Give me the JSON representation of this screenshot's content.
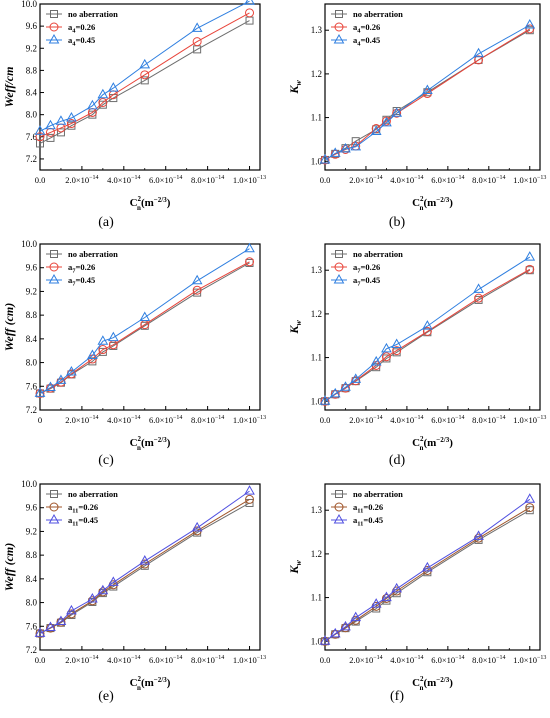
{
  "colors": {
    "no_aberration": "#6d6d6d",
    "a026": "#e8443a",
    "a045": "#2f7fe0",
    "axis": "#000000",
    "a026_row3": "#a0552a",
    "a045_row3": "#5050e0"
  },
  "chart_data": [
    {
      "type": "line",
      "panel": "(a)",
      "ylabel": "Weff/cm",
      "xlabel": "C_n^2(m^-2/3)",
      "xlim": [
        0,
        1.05e-13
      ],
      "ylim": [
        7.0,
        10.0
      ],
      "x_ticks": [
        0,
        2e-14,
        4e-14,
        6e-14,
        8e-14,
        1e-13
      ],
      "x_tick_labels": [
        "0.0",
        "2.0×10",
        "4.0×10",
        "6.0×10",
        "8.0×10",
        "1.0×10"
      ],
      "x_tick_exps": [
        "",
        "−14",
        "−14",
        "−14",
        "−14",
        "−13"
      ],
      "y_ticks": [
        7.2,
        7.6,
        8.0,
        8.4,
        8.8,
        9.2,
        9.6,
        10.0
      ],
      "y_tick_labels": [
        "7.2",
        "7.6",
        "8.0",
        "8.4",
        "8.8",
        "9.2",
        "9.6",
        "10.0"
      ],
      "legend": [
        {
          "base": "no aberration",
          "sub": ""
        },
        {
          "base": "a",
          "sub": "4",
          "suffix": "=0.26"
        },
        {
          "base": "a",
          "sub": "4",
          "suffix": "=0.45"
        }
      ],
      "x": [
        0,
        5e-15,
        1e-14,
        1.5e-14,
        2.5e-14,
        3e-14,
        3.5e-14,
        5e-14,
        7.5e-14,
        1e-13
      ],
      "series": [
        {
          "values": [
            7.48,
            7.58,
            7.68,
            7.8,
            8.0,
            8.18,
            8.3,
            8.62,
            9.18,
            9.7
          ],
          "marker": "square"
        },
        {
          "values": [
            7.6,
            7.68,
            7.76,
            7.84,
            8.04,
            8.22,
            8.36,
            8.72,
            9.32,
            9.84
          ],
          "marker": "circle"
        },
        {
          "values": [
            7.7,
            7.8,
            7.88,
            7.94,
            8.16,
            8.36,
            8.48,
            8.9,
            9.56,
            10.05
          ],
          "marker": "triangle"
        }
      ]
    },
    {
      "type": "line",
      "panel": "(b)",
      "ylabel": "K",
      "ylabel_sub": "w",
      "xlabel": "C_n^2(m^-2/3)",
      "xlim": [
        0,
        1.05e-13
      ],
      "ylim": [
        0.98,
        1.36
      ],
      "x_ticks": [
        0,
        2e-14,
        4e-14,
        6e-14,
        8e-14,
        1e-13
      ],
      "x_tick_labels": [
        "0.0",
        "2.0×10",
        "4.0×10",
        "6.0×10",
        "8.0×10",
        "1.0×10"
      ],
      "x_tick_exps": [
        "",
        "−14",
        "−14",
        "−14",
        "−14",
        "−13"
      ],
      "y_ticks": [
        1.0,
        1.1,
        1.2,
        1.3
      ],
      "y_tick_labels": [
        "1.0",
        "1.1",
        "1.2",
        "1.3"
      ],
      "legend": [
        {
          "base": "no aberration",
          "sub": ""
        },
        {
          "base": "a",
          "sub": "4",
          "suffix": "=0.26"
        },
        {
          "base": "a",
          "sub": "4",
          "suffix": "=0.45"
        }
      ],
      "x": [
        0,
        5e-15,
        1e-14,
        1.5e-14,
        2.5e-14,
        3e-14,
        3.5e-14,
        5e-14,
        7.5e-14,
        1e-13
      ],
      "series": [
        {
          "values": [
            1.003,
            1.017,
            1.03,
            1.046,
            1.073,
            1.095,
            1.115,
            1.158,
            1.232,
            1.3
          ],
          "marker": "square"
        },
        {
          "values": [
            1.003,
            1.016,
            1.027,
            1.035,
            1.075,
            1.092,
            1.11,
            1.155,
            1.232,
            1.303
          ],
          "marker": "circle"
        },
        {
          "values": [
            1.003,
            1.018,
            1.028,
            1.033,
            1.068,
            1.088,
            1.11,
            1.162,
            1.246,
            1.312
          ],
          "marker": "triangle"
        }
      ]
    },
    {
      "type": "line",
      "panel": "(c)",
      "ylabel": "Weff (cm)",
      "xlabel": "C_n^2(m^-2/3)",
      "xlim": [
        0,
        1.05e-13
      ],
      "ylim": [
        7.2,
        10.0
      ],
      "x_ticks": [
        0,
        2e-14,
        4e-14,
        6e-14,
        8e-14,
        1e-13
      ],
      "x_tick_labels": [
        "0",
        "2.0×10",
        "4.0×10",
        "6.0×10",
        "8.0×10",
        "1.0×10"
      ],
      "x_tick_exps": [
        "",
        "−14",
        "−14",
        "−14",
        "−14",
        "−13"
      ],
      "y_ticks": [
        7.2,
        7.6,
        8.0,
        8.4,
        8.8,
        9.2,
        9.6,
        10.0
      ],
      "y_tick_labels": [
        "7.2",
        "7.6",
        "8.0",
        "8.4",
        "8.8",
        "9.2",
        "9.6",
        "10.0"
      ],
      "legend": [
        {
          "base": "no aberration",
          "sub": ""
        },
        {
          "base": "a",
          "sub": "7",
          "suffix": "=0.26"
        },
        {
          "base": "a",
          "sub": "7",
          "suffix": "=0.45"
        }
      ],
      "x": [
        0,
        5e-15,
        1e-14,
        1.5e-14,
        2.5e-14,
        3e-14,
        3.5e-14,
        5e-14,
        7.5e-14,
        1e-13
      ],
      "series": [
        {
          "values": [
            7.48,
            7.56,
            7.66,
            7.8,
            8.02,
            8.18,
            8.28,
            8.62,
            9.18,
            9.68
          ],
          "marker": "square"
        },
        {
          "values": [
            7.48,
            7.57,
            7.67,
            7.81,
            8.06,
            8.22,
            8.3,
            8.64,
            9.22,
            9.7
          ],
          "marker": "circle"
        },
        {
          "values": [
            7.48,
            7.58,
            7.7,
            7.84,
            8.12,
            8.36,
            8.42,
            8.76,
            9.38,
            9.92
          ],
          "marker": "triangle"
        }
      ]
    },
    {
      "type": "line",
      "panel": "(d)",
      "ylabel": "K",
      "ylabel_sub": "w",
      "xlabel": "C_n^2(m^-2/3)",
      "xlim": [
        0,
        1.05e-13
      ],
      "ylim": [
        0.98,
        1.36
      ],
      "x_ticks": [
        0,
        2e-14,
        4e-14,
        6e-14,
        8e-14,
        1e-13
      ],
      "x_tick_labels": [
        "0.0",
        "2.0×10",
        "4.0×10",
        "6.0×10",
        "8.0×10",
        "1.0×10"
      ],
      "x_tick_exps": [
        "",
        "−14",
        "−14",
        "−14",
        "−14",
        "−13"
      ],
      "y_ticks": [
        1.0,
        1.1,
        1.2,
        1.3
      ],
      "y_tick_labels": [
        "1.0",
        "1.1",
        "1.2",
        "1.3"
      ],
      "legend": [
        {
          "base": "no aberration",
          "sub": ""
        },
        {
          "base": "a",
          "sub": "7",
          "suffix": "=0.26"
        },
        {
          "base": "a",
          "sub": "7",
          "suffix": "=0.45"
        }
      ],
      "x": [
        0,
        5e-15,
        1e-14,
        1.5e-14,
        2.5e-14,
        3e-14,
        3.5e-14,
        5e-14,
        7.5e-14,
        1e-13
      ],
      "series": [
        {
          "values": [
            1.0,
            1.016,
            1.03,
            1.046,
            1.078,
            1.098,
            1.112,
            1.158,
            1.232,
            1.3
          ],
          "marker": "square"
        },
        {
          "values": [
            1.0,
            1.016,
            1.03,
            1.047,
            1.082,
            1.102,
            1.116,
            1.16,
            1.236,
            1.302
          ],
          "marker": "circle"
        },
        {
          "values": [
            1.0,
            1.017,
            1.032,
            1.05,
            1.09,
            1.12,
            1.13,
            1.172,
            1.256,
            1.33
          ],
          "marker": "triangle"
        }
      ]
    },
    {
      "type": "line",
      "panel": "(e)",
      "ylabel": "Weff (cm)",
      "xlabel": "C_n^2(m^-2/3)",
      "xlim": [
        0,
        1.05e-13
      ],
      "ylim": [
        7.2,
        10.0
      ],
      "x_ticks": [
        0,
        2e-14,
        4e-14,
        6e-14,
        8e-14,
        1e-13
      ],
      "x_tick_labels": [
        "0.0",
        "2.0×10",
        "4.0×10",
        "6.0×10",
        "8.0×10",
        "1.0×10"
      ],
      "x_tick_exps": [
        "",
        "−14",
        "−14",
        "−14",
        "−14",
        "−13"
      ],
      "y_ticks": [
        7.2,
        7.6,
        8.0,
        8.4,
        8.8,
        9.2,
        9.6,
        10.0
      ],
      "y_tick_labels": [
        "7.2",
        "7.6",
        "8.0",
        "8.4",
        "8.8",
        "9.2",
        "9.6",
        "10.0"
      ],
      "legend": [
        {
          "base": "no aberration",
          "sub": ""
        },
        {
          "base": "a",
          "sub": "11",
          "suffix": "=0.26"
        },
        {
          "base": "a",
          "sub": "11",
          "suffix": "=0.45"
        }
      ],
      "x": [
        0,
        5e-15,
        1e-14,
        1.5e-14,
        2.5e-14,
        3e-14,
        3.5e-14,
        5e-14,
        7.5e-14,
        1e-13
      ],
      "series": [
        {
          "values": [
            7.48,
            7.57,
            7.66,
            7.79,
            8.01,
            8.16,
            8.27,
            8.62,
            9.18,
            9.68
          ],
          "marker": "square"
        },
        {
          "values": [
            7.48,
            7.57,
            7.67,
            7.81,
            8.03,
            8.18,
            8.3,
            8.65,
            9.21,
            9.74
          ],
          "marker": "circle"
        },
        {
          "values": [
            7.48,
            7.58,
            7.68,
            7.86,
            8.06,
            8.2,
            8.34,
            8.7,
            9.26,
            9.88
          ],
          "marker": "triangle"
        }
      ]
    },
    {
      "type": "line",
      "panel": "(f)",
      "ylabel": "K",
      "ylabel_sub": "w",
      "xlabel": "C_n^2(m^-2/3)",
      "xlim": [
        0,
        1.05e-13
      ],
      "ylim": [
        0.98,
        1.36
      ],
      "x_ticks": [
        0,
        2e-14,
        4e-14,
        6e-14,
        8e-14,
        1e-13
      ],
      "x_tick_labels": [
        "0.0",
        "2.0×10",
        "4.0×10",
        "6.0×10",
        "8.0×10",
        "1.0×10"
      ],
      "x_tick_exps": [
        "",
        "−14",
        "−14",
        "−14",
        "−14",
        "−13"
      ],
      "y_ticks": [
        1.0,
        1.1,
        1.2,
        1.3
      ],
      "y_tick_labels": [
        "1.0",
        "1.1",
        "1.2",
        "1.3"
      ],
      "legend": [
        {
          "base": "no aberration",
          "sub": ""
        },
        {
          "base": "a",
          "sub": "11",
          "suffix": "=0.26"
        },
        {
          "base": "a",
          "sub": "11",
          "suffix": "=0.45"
        }
      ],
      "x": [
        0,
        5e-15,
        1e-14,
        1.5e-14,
        2.5e-14,
        3e-14,
        3.5e-14,
        5e-14,
        7.5e-14,
        1e-13
      ],
      "series": [
        {
          "values": [
            1.0,
            1.016,
            1.03,
            1.045,
            1.075,
            1.093,
            1.11,
            1.158,
            1.232,
            1.3
          ],
          "marker": "square"
        },
        {
          "values": [
            1.0,
            1.016,
            1.031,
            1.048,
            1.08,
            1.098,
            1.115,
            1.162,
            1.236,
            1.306
          ],
          "marker": "circle"
        },
        {
          "values": [
            1.0,
            1.017,
            1.033,
            1.054,
            1.085,
            1.1,
            1.12,
            1.168,
            1.24,
            1.325
          ],
          "marker": "triangle"
        }
      ]
    }
  ]
}
